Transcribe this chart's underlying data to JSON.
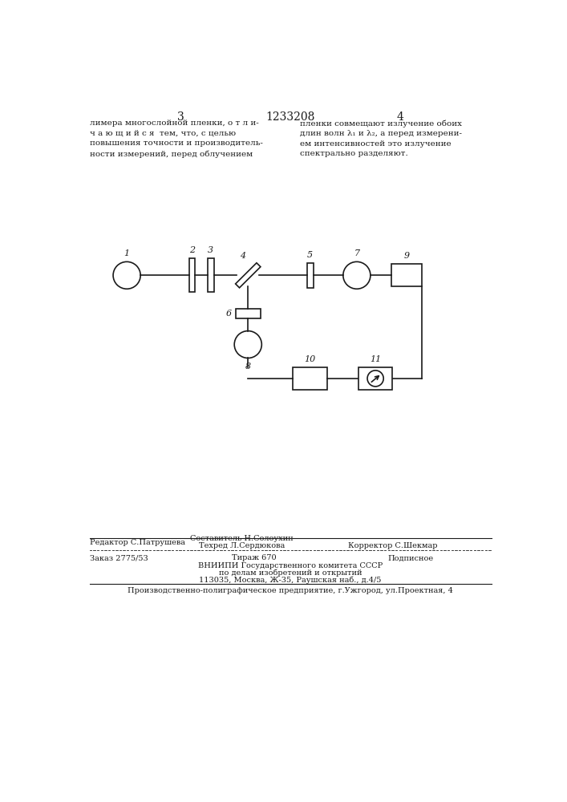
{
  "bg_color": "#ffffff",
  "line_color": "#1a1a1a",
  "page_number_left": "3",
  "page_number_center": "1233208",
  "page_number_right": "4",
  "text_left": "лимера многослойной пленки, о т л и-\nч а ю щ и й с я  тем, что, с целью\nповышения точности и производитель-\nности измерений, перед облучением",
  "text_right": "пленки совмещают излучение обоих\nдлин волн λ₁ и λ₂, а перед измерени-\nем интенсивностей это излучение\nспектрально разделяют.",
  "footer_line1_col1": "Редактор С.Патрушева",
  "footer_line1_col2_top": "Составитель Н.Солоухин",
  "footer_line1_col2_bot": "Техред Л.Сердюкова",
  "footer_line1_col3": "Корректор С.Шекмар",
  "footer_line2_col1": "Заказ 2775/53",
  "footer_line2_col2": "Тираж 670",
  "footer_line2_col3": "Подписное",
  "footer_line3": "ВНИИПИ Государственного комитета СССР",
  "footer_line4": "по делам изобретений и открытий",
  "footer_line5": "113035, Москва, Ж-35, Раушская наб., д.4/5",
  "footer_last": "Производственно-полиграфическое предприятие, г.Ужгород, ул.Проектная, 4"
}
